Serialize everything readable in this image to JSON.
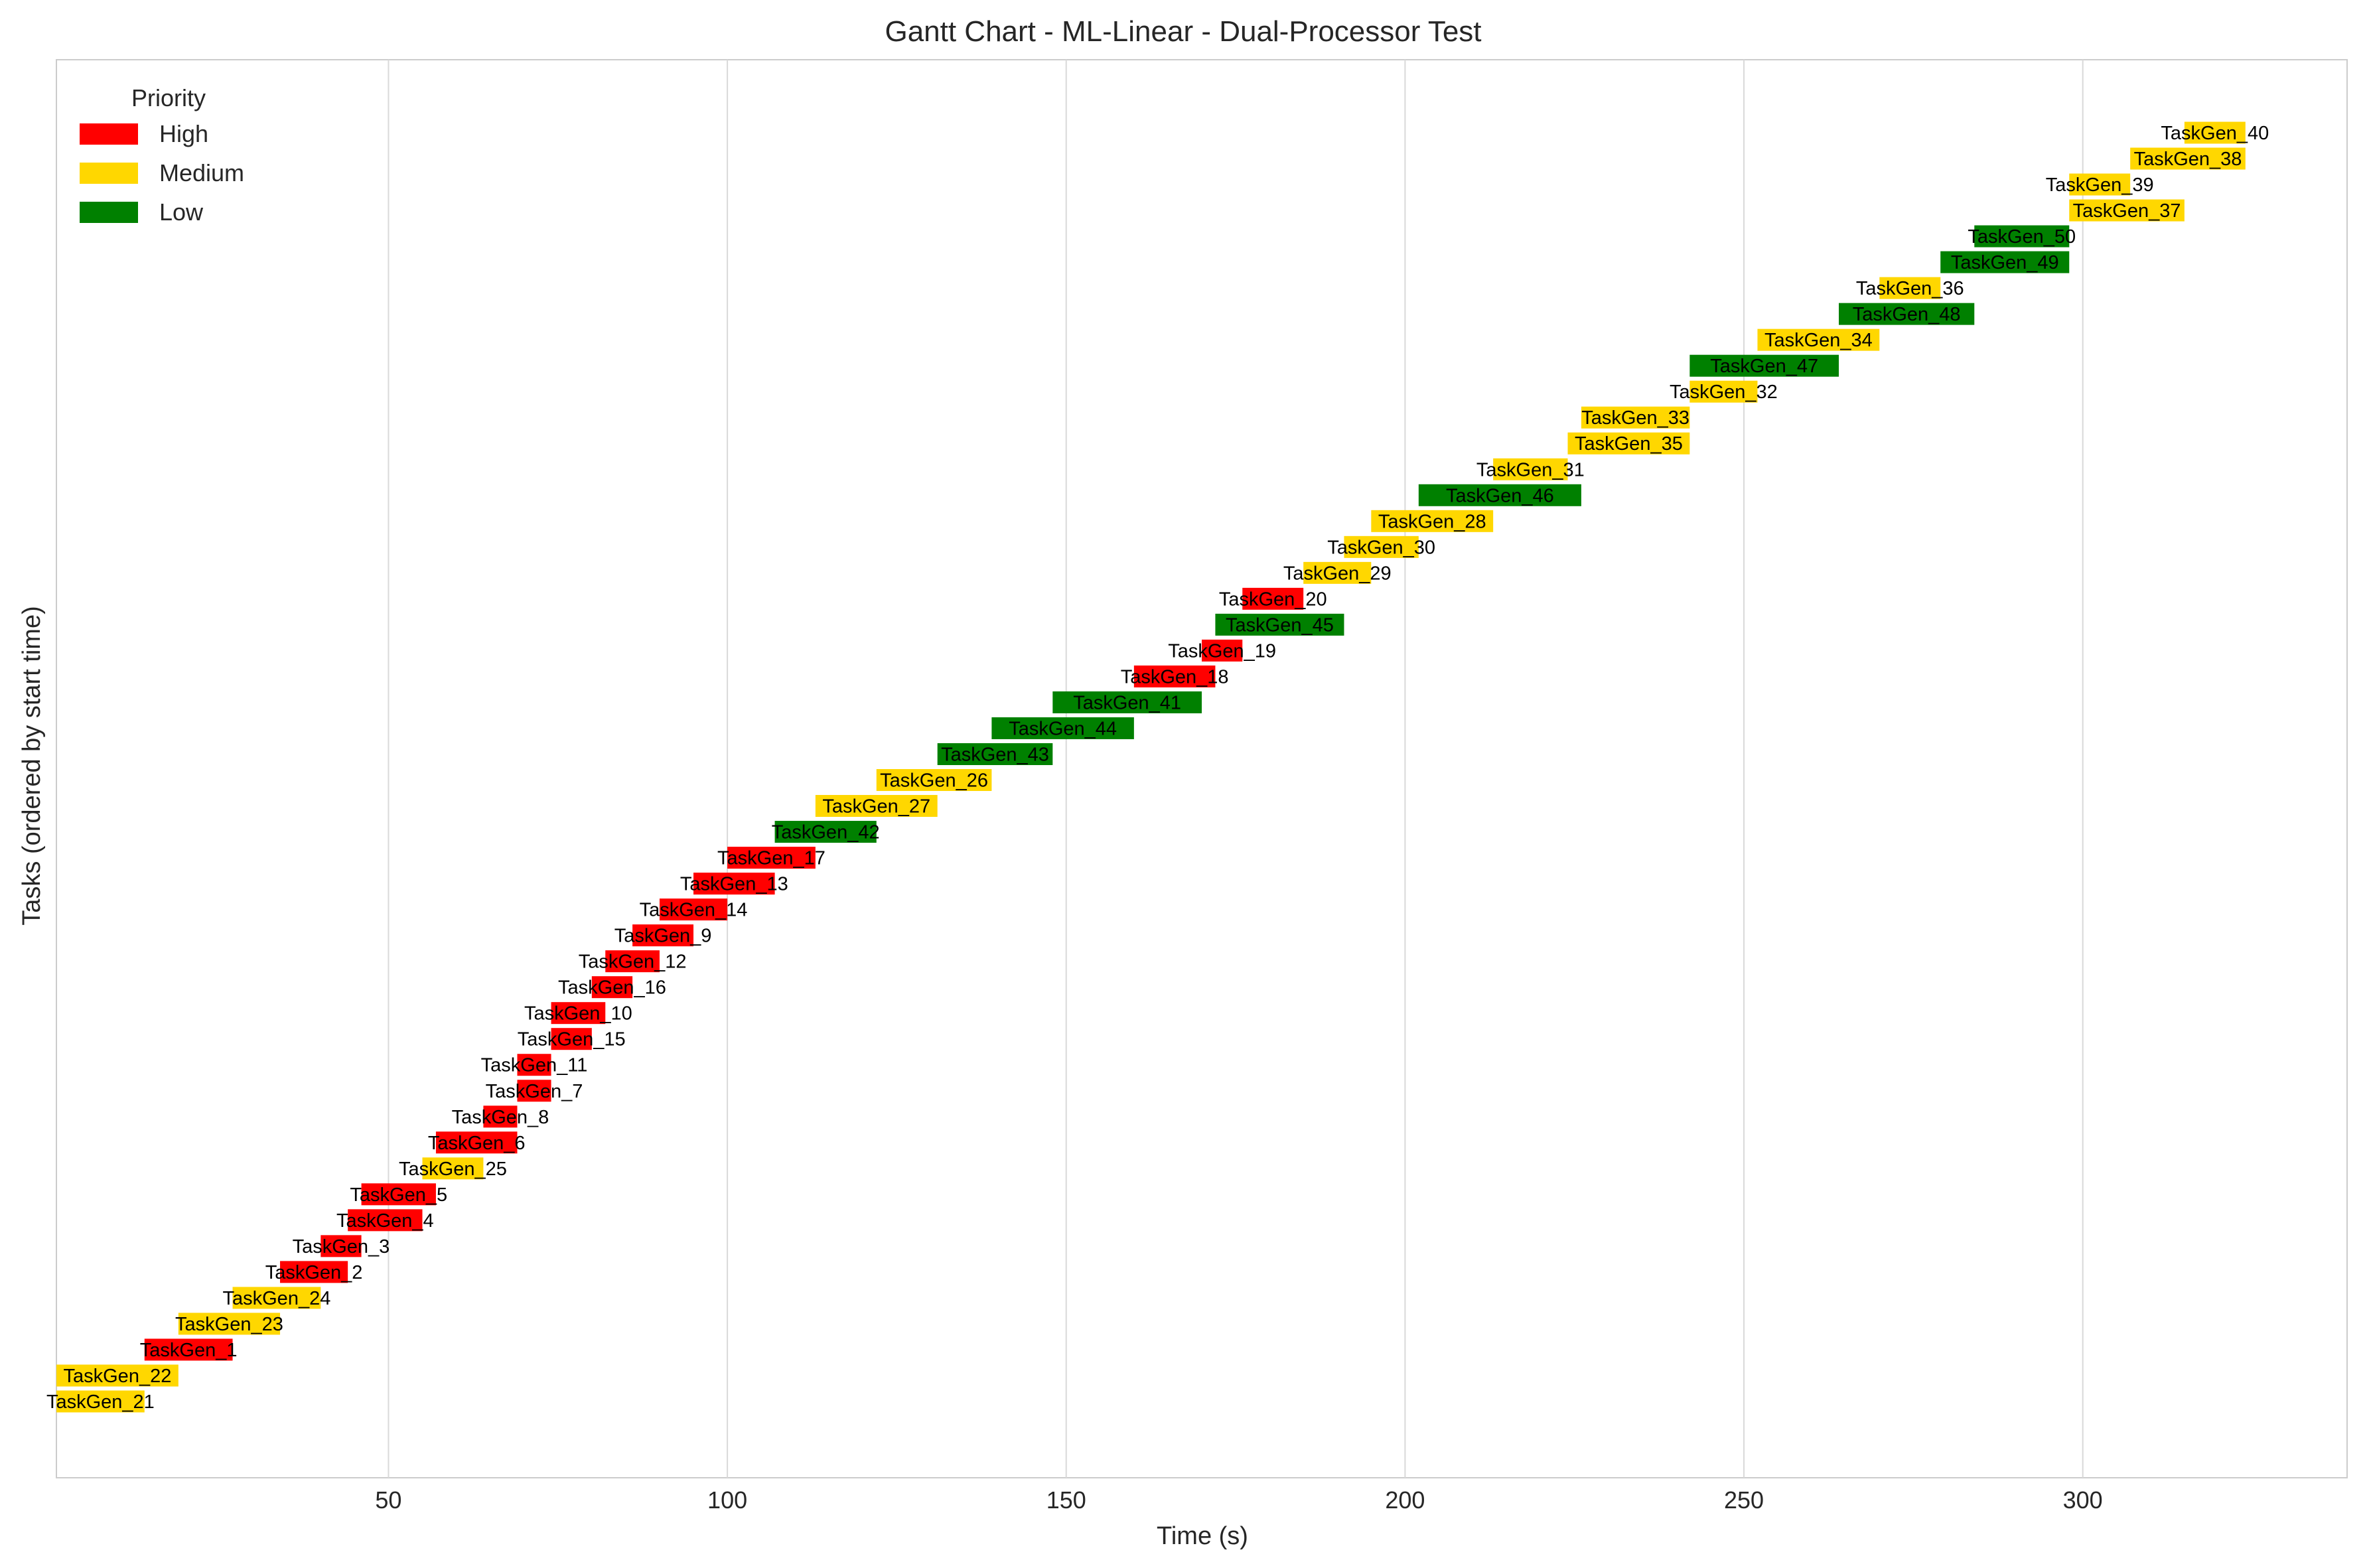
{
  "chart_data": {
    "type": "gantt",
    "title": "Gantt Chart - ML-Linear - Dual-Processor Test",
    "xlabel": "Time (s)",
    "ylabel": "Tasks (ordered by start time)",
    "xlim": [
      1,
      339
    ],
    "xticks": [
      50,
      100,
      150,
      200,
      250,
      300
    ],
    "grid": "vertical",
    "legend": {
      "title": "Priority",
      "placement": "top-left",
      "entries": [
        {
          "label": "High",
          "color": "#ff0000"
        },
        {
          "label": "Medium",
          "color": "#ffd700"
        },
        {
          "label": "Low",
          "color": "#008000"
        }
      ]
    },
    "tasks": [
      {
        "name": "TaskGen_21",
        "priority": "Medium",
        "start": 1,
        "end": 14
      },
      {
        "name": "TaskGen_22",
        "priority": "Medium",
        "start": 1,
        "end": 19
      },
      {
        "name": "TaskGen_1",
        "priority": "High",
        "start": 14,
        "end": 27
      },
      {
        "name": "TaskGen_23",
        "priority": "Medium",
        "start": 19,
        "end": 34
      },
      {
        "name": "TaskGen_24",
        "priority": "Medium",
        "start": 27,
        "end": 40
      },
      {
        "name": "TaskGen_2",
        "priority": "High",
        "start": 34,
        "end": 44
      },
      {
        "name": "TaskGen_3",
        "priority": "High",
        "start": 40,
        "end": 46
      },
      {
        "name": "TaskGen_4",
        "priority": "High",
        "start": 44,
        "end": 55
      },
      {
        "name": "TaskGen_5",
        "priority": "High",
        "start": 46,
        "end": 57
      },
      {
        "name": "TaskGen_25",
        "priority": "Medium",
        "start": 55,
        "end": 64
      },
      {
        "name": "TaskGen_6",
        "priority": "High",
        "start": 57,
        "end": 69
      },
      {
        "name": "TaskGen_8",
        "priority": "High",
        "start": 64,
        "end": 69
      },
      {
        "name": "TaskGen_7",
        "priority": "High",
        "start": 69,
        "end": 74
      },
      {
        "name": "TaskGen_11",
        "priority": "High",
        "start": 69,
        "end": 74
      },
      {
        "name": "TaskGen_15",
        "priority": "High",
        "start": 74,
        "end": 80
      },
      {
        "name": "TaskGen_10",
        "priority": "High",
        "start": 74,
        "end": 82
      },
      {
        "name": "TaskGen_16",
        "priority": "High",
        "start": 80,
        "end": 86
      },
      {
        "name": "TaskGen_12",
        "priority": "High",
        "start": 82,
        "end": 90
      },
      {
        "name": "TaskGen_9",
        "priority": "High",
        "start": 86,
        "end": 95
      },
      {
        "name": "TaskGen_14",
        "priority": "High",
        "start": 90,
        "end": 100
      },
      {
        "name": "TaskGen_13",
        "priority": "High",
        "start": 95,
        "end": 107
      },
      {
        "name": "TaskGen_17",
        "priority": "High",
        "start": 100,
        "end": 113
      },
      {
        "name": "TaskGen_42",
        "priority": "Low",
        "start": 107,
        "end": 122
      },
      {
        "name": "TaskGen_27",
        "priority": "Medium",
        "start": 113,
        "end": 131
      },
      {
        "name": "TaskGen_26",
        "priority": "Medium",
        "start": 122,
        "end": 139
      },
      {
        "name": "TaskGen_43",
        "priority": "Low",
        "start": 131,
        "end": 148
      },
      {
        "name": "TaskGen_44",
        "priority": "Low",
        "start": 139,
        "end": 160
      },
      {
        "name": "TaskGen_41",
        "priority": "Low",
        "start": 148,
        "end": 170
      },
      {
        "name": "TaskGen_18",
        "priority": "High",
        "start": 160,
        "end": 172
      },
      {
        "name": "TaskGen_19",
        "priority": "High",
        "start": 170,
        "end": 176
      },
      {
        "name": "TaskGen_45",
        "priority": "Low",
        "start": 172,
        "end": 191
      },
      {
        "name": "TaskGen_20",
        "priority": "High",
        "start": 176,
        "end": 185
      },
      {
        "name": "TaskGen_29",
        "priority": "Medium",
        "start": 185,
        "end": 195
      },
      {
        "name": "TaskGen_30",
        "priority": "Medium",
        "start": 191,
        "end": 202
      },
      {
        "name": "TaskGen_28",
        "priority": "Medium",
        "start": 195,
        "end": 213
      },
      {
        "name": "TaskGen_46",
        "priority": "Low",
        "start": 202,
        "end": 226
      },
      {
        "name": "TaskGen_31",
        "priority": "Medium",
        "start": 213,
        "end": 224
      },
      {
        "name": "TaskGen_35",
        "priority": "Medium",
        "start": 224,
        "end": 242
      },
      {
        "name": "TaskGen_33",
        "priority": "Medium",
        "start": 226,
        "end": 242
      },
      {
        "name": "TaskGen_32",
        "priority": "Medium",
        "start": 242,
        "end": 252
      },
      {
        "name": "TaskGen_47",
        "priority": "Low",
        "start": 242,
        "end": 264
      },
      {
        "name": "TaskGen_34",
        "priority": "Medium",
        "start": 252,
        "end": 270
      },
      {
        "name": "TaskGen_48",
        "priority": "Low",
        "start": 264,
        "end": 284
      },
      {
        "name": "TaskGen_36",
        "priority": "Medium",
        "start": 270,
        "end": 279
      },
      {
        "name": "TaskGen_49",
        "priority": "Low",
        "start": 279,
        "end": 298
      },
      {
        "name": "TaskGen_50",
        "priority": "Low",
        "start": 284,
        "end": 298
      },
      {
        "name": "TaskGen_37",
        "priority": "Medium",
        "start": 298,
        "end": 315
      },
      {
        "name": "TaskGen_39",
        "priority": "Medium",
        "start": 298,
        "end": 307
      },
      {
        "name": "TaskGen_38",
        "priority": "Medium",
        "start": 307,
        "end": 324
      },
      {
        "name": "TaskGen_40",
        "priority": "Medium",
        "start": 315,
        "end": 324
      }
    ]
  }
}
